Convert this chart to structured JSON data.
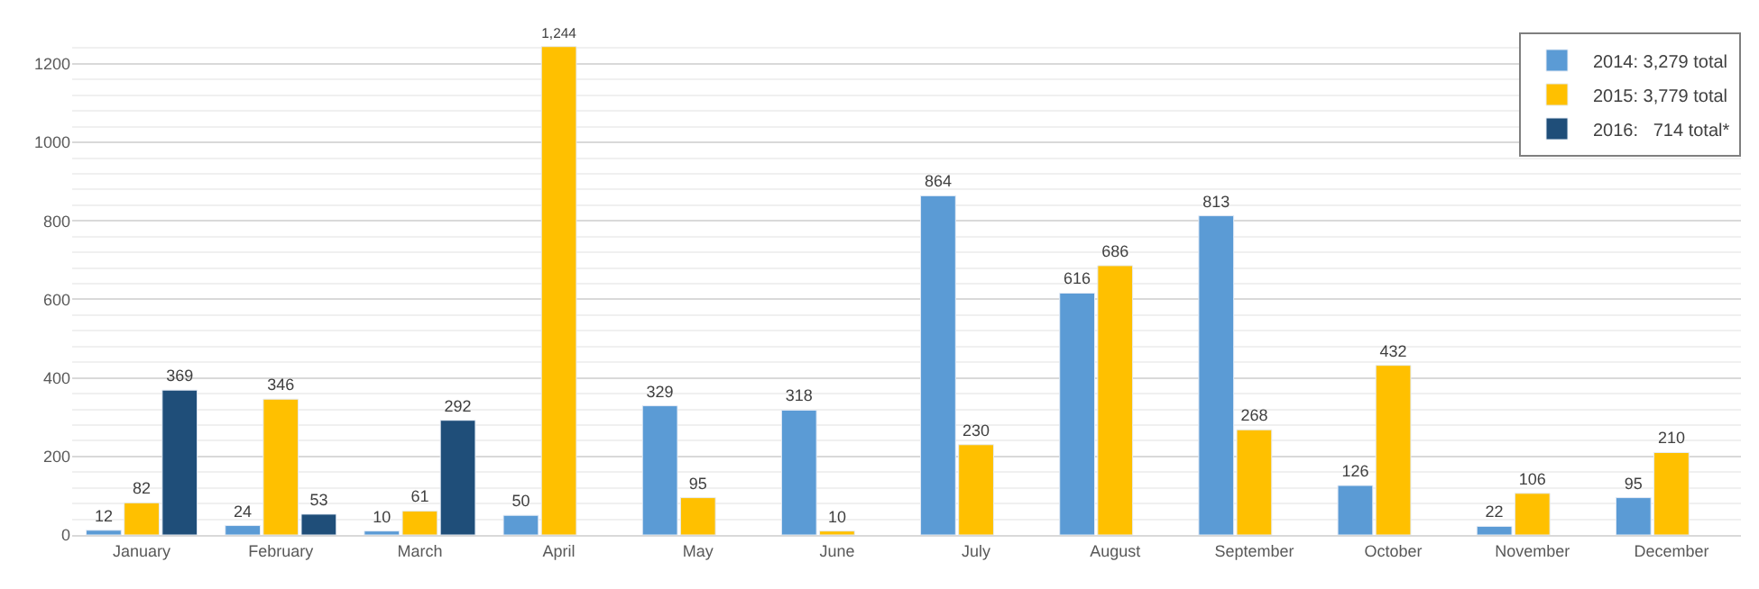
{
  "chart_data": {
    "type": "bar",
    "categories": [
      "January",
      "February",
      "March",
      "April",
      "May",
      "June",
      "July",
      "August",
      "September",
      "October",
      "November",
      "December"
    ],
    "series": [
      {
        "name": "2014: 3,279 total",
        "color": "#5b9bd5",
        "values": [
          12,
          24,
          10,
          50,
          329,
          318,
          864,
          616,
          813,
          126,
          22,
          95
        ],
        "value_labels": [
          "12",
          "24",
          "10",
          "50",
          "329",
          "318",
          "864",
          "616",
          "813",
          "126",
          "22",
          "95"
        ]
      },
      {
        "name": "2015: 3,779 total",
        "color": "#ffc000",
        "values": [
          82,
          346,
          61,
          1244,
          95,
          10,
          230,
          686,
          268,
          432,
          106,
          210
        ],
        "value_labels": [
          "82",
          "346",
          "61",
          "1,244",
          "95",
          "10",
          "230",
          "686",
          "268",
          "432",
          "106",
          "210"
        ]
      },
      {
        "name": "2016:   714 total*",
        "color": "#1f4e79",
        "values": [
          369,
          53,
          292,
          null,
          null,
          null,
          null,
          null,
          null,
          null,
          null,
          null
        ],
        "value_labels": [
          "369",
          "53",
          "292",
          null,
          null,
          null,
          null,
          null,
          null,
          null,
          null,
          null
        ]
      }
    ],
    "ylim": [
      0,
      1280
    ],
    "yticks": [
      0,
      200,
      400,
      600,
      800,
      1000,
      1200
    ],
    "grid": true,
    "legend": "top right"
  }
}
